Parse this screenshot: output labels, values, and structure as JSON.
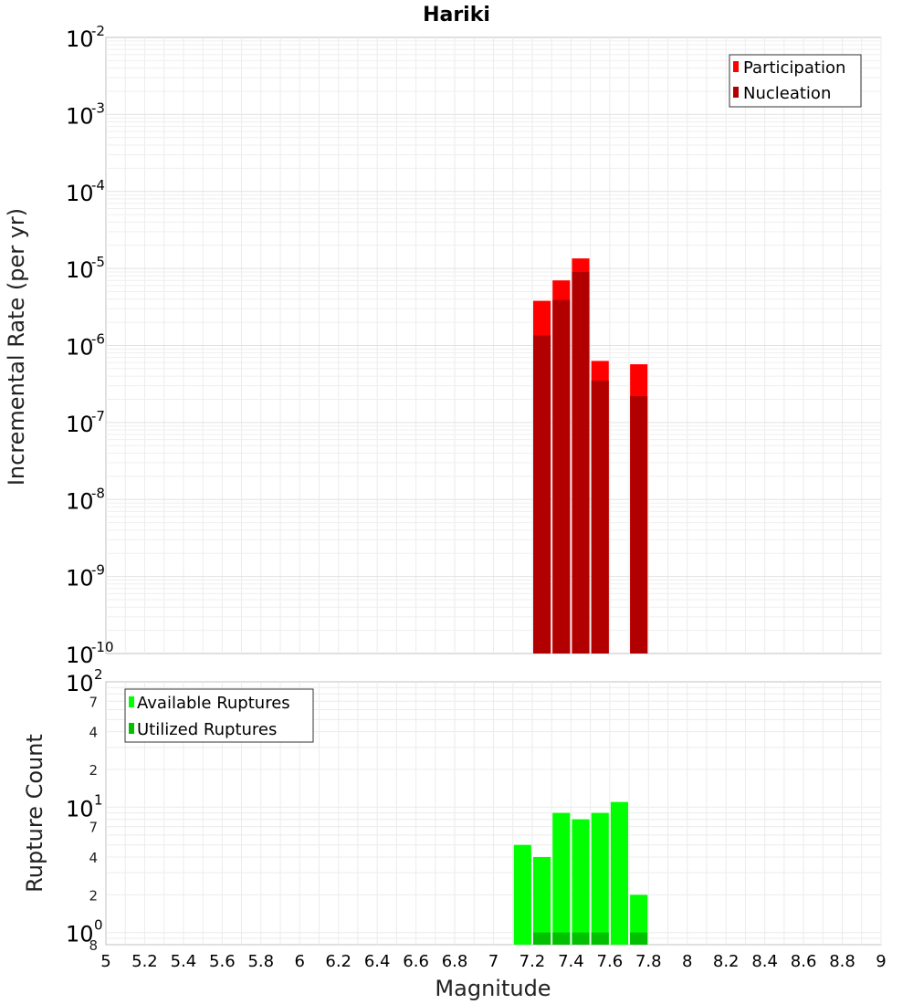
{
  "chart_data": [
    {
      "type": "bar",
      "title": "Hariki",
      "xlabel": "",
      "ylabel": "Incremental Rate (per yr)",
      "yscale": "log",
      "ylim": [
        1e-10,
        0.01
      ],
      "xlim": [
        5,
        9
      ],
      "y_tick_labels": [
        {
          "value": 0.01,
          "base": "10",
          "exp": "-2"
        },
        {
          "value": 0.001,
          "base": "10",
          "exp": "-3"
        },
        {
          "value": 0.0001,
          "base": "10",
          "exp": "-4"
        },
        {
          "value": 1e-05,
          "base": "10",
          "exp": "-5"
        },
        {
          "value": 1e-06,
          "base": "10",
          "exp": "-6"
        },
        {
          "value": 1e-07,
          "base": "10",
          "exp": "-7"
        },
        {
          "value": 1e-08,
          "base": "10",
          "exp": "-8"
        },
        {
          "value": 1e-09,
          "base": "10",
          "exp": "-9"
        },
        {
          "value": 1e-10,
          "base": "10",
          "exp": "-10"
        }
      ],
      "bar_width": 0.09,
      "series": [
        {
          "name": "Participation",
          "color": "#ff0000",
          "x": [
            7.25,
            7.35,
            7.45,
            7.55,
            7.75
          ],
          "values": [
            3.8e-06,
            7e-06,
            1.35e-05,
            6.3e-07,
            5.7e-07
          ]
        },
        {
          "name": "Nucleation",
          "color": "#b20000",
          "x": [
            7.25,
            7.35,
            7.45,
            7.55,
            7.75
          ],
          "values": [
            1.35e-06,
            3.9e-06,
            9e-06,
            3.5e-07,
            2.2e-07
          ]
        }
      ],
      "legend_position": "top-right"
    },
    {
      "type": "bar",
      "title": "",
      "xlabel": "Magnitude",
      "ylabel": "Rupture Count",
      "yscale": "log",
      "ylim": [
        0.8,
        100
      ],
      "xlim": [
        5,
        9
      ],
      "x_ticks": [
        "5",
        "5.2",
        "5.4",
        "5.6",
        "5.8",
        "6",
        "6.2",
        "6.4",
        "6.6",
        "6.8",
        "7",
        "7.2",
        "7.4",
        "7.6",
        "7.8",
        "8",
        "8.2",
        "8.4",
        "8.6",
        "8.8",
        "9"
      ],
      "y_tick_labels": [
        {
          "value": 100,
          "base": "10",
          "exp": "2"
        },
        {
          "value": 10,
          "base": "10",
          "exp": "1"
        },
        {
          "value": 1,
          "base": "10",
          "exp": "0"
        }
      ],
      "y_minor_labels": [
        {
          "value": 70,
          "label": "7"
        },
        {
          "value": 40,
          "label": "4"
        },
        {
          "value": 20,
          "label": "2"
        },
        {
          "value": 7,
          "label": "7"
        },
        {
          "value": 4,
          "label": "4"
        },
        {
          "value": 2,
          "label": "2"
        },
        {
          "value": 0.8,
          "label": "8"
        }
      ],
      "bar_width": 0.09,
      "series": [
        {
          "name": "Available Ruptures",
          "color": "#00ff00",
          "x": [
            7.15,
            7.25,
            7.35,
            7.45,
            7.55,
            7.65,
            7.75
          ],
          "values": [
            5,
            4,
            9,
            8,
            9,
            11,
            2
          ]
        },
        {
          "name": "Utilized Ruptures",
          "color": "#00c000",
          "x": [
            7.25,
            7.35,
            7.45,
            7.55,
            7.75
          ],
          "values": [
            1,
            1,
            1,
            1,
            1
          ]
        }
      ],
      "legend_position": "top-left"
    }
  ]
}
